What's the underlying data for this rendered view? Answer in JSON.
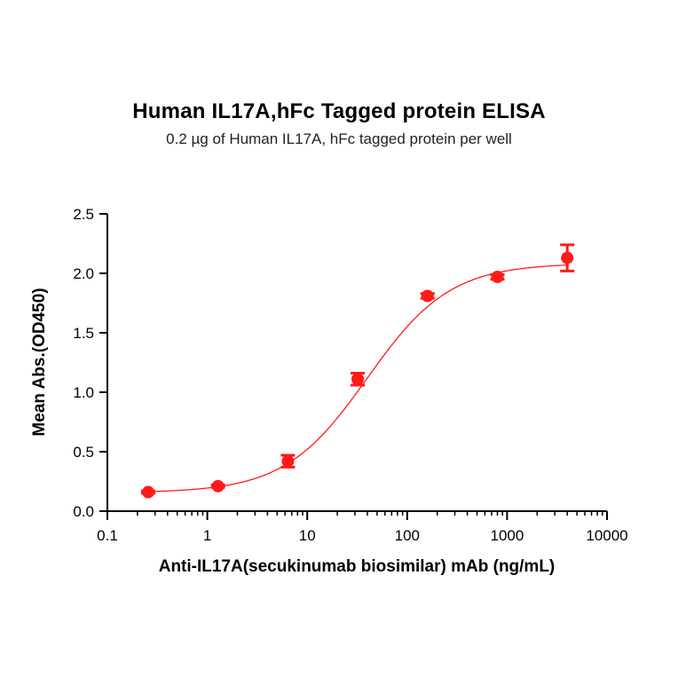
{
  "chart_data": {
    "type": "scatter",
    "title": "Human IL17A,hFc Tagged protein ELISA",
    "subtitle": "0.2 µg of Human IL17A, hFc tagged protein per well",
    "xlabel": "Anti-IL17A(secukinumab biosimilar) mAb (ng/mL)",
    "ylabel": "Mean Abs.(OD450)",
    "x_scale": "log",
    "xlim": [
      0.1,
      10000
    ],
    "ylim": [
      0,
      2.5
    ],
    "x_ticks": [
      "0.1",
      "1",
      "10",
      "100",
      "1000",
      "10000"
    ],
    "y_ticks": [
      "0.0",
      "0.5",
      "1.0",
      "1.5",
      "2.0",
      "2.5"
    ],
    "series": [
      {
        "x": [
          0.256,
          1.28,
          6.4,
          32,
          160,
          800,
          4000
        ],
        "y": [
          0.16,
          0.21,
          0.42,
          1.11,
          1.81,
          1.97,
          2.13
        ],
        "error": [
          0.01,
          0.01,
          0.05,
          0.05,
          0.02,
          0.02,
          0.11
        ],
        "fit": {
          "bottom": 0.155,
          "top": 2.085,
          "ec50": 40,
          "hill": 1.05
        }
      }
    ],
    "color": "#ff1a1a",
    "grid": false
  }
}
